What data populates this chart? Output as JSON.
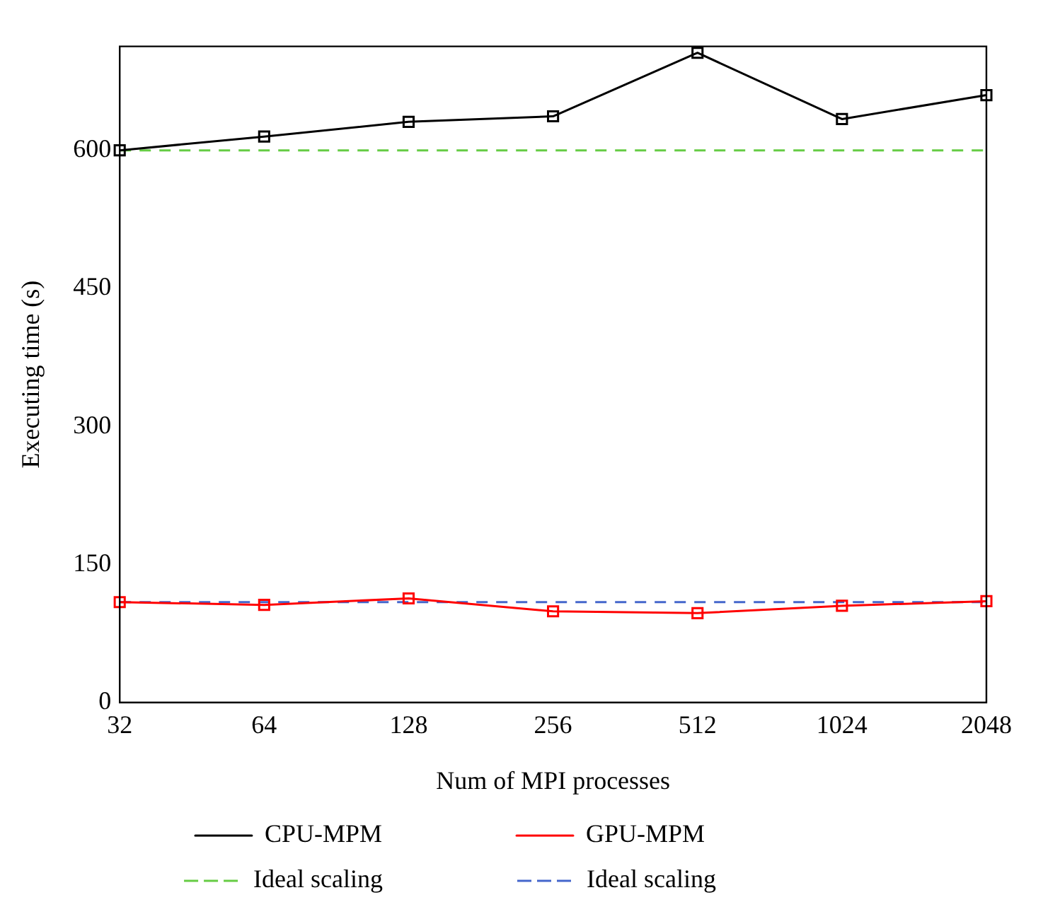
{
  "chart_data": {
    "type": "line",
    "xlabel": "Num of MPI processes",
    "ylabel": "Executing time (s)",
    "categories": [
      "32",
      "64",
      "128",
      "256",
      "512",
      "1024",
      "2048"
    ],
    "ylim": [
      0,
      713
    ],
    "yticks": [
      0,
      150,
      300,
      450,
      600
    ],
    "grid": false,
    "legend": "bottom",
    "series": [
      {
        "name": "CPU-MPM",
        "color": "#000000",
        "marker": "square",
        "line_style": "solid",
        "values": [
          600,
          615,
          631,
          637,
          706,
          634,
          660
        ]
      },
      {
        "name": "GPU-MPM",
        "color": "#ff0000",
        "marker": "square",
        "line_style": "solid",
        "values": [
          109,
          106,
          113,
          99,
          97,
          105,
          110
        ]
      },
      {
        "name": "Ideal scaling",
        "color": "#66cc44",
        "marker": "none",
        "line_style": "dashed",
        "values": [
          600,
          600,
          600,
          600,
          600,
          600,
          600
        ]
      },
      {
        "name": "Ideal scaling",
        "color": "#4466cc",
        "marker": "none",
        "line_style": "dashed",
        "values": [
          109,
          109,
          109,
          109,
          109,
          109,
          109
        ]
      }
    ]
  }
}
